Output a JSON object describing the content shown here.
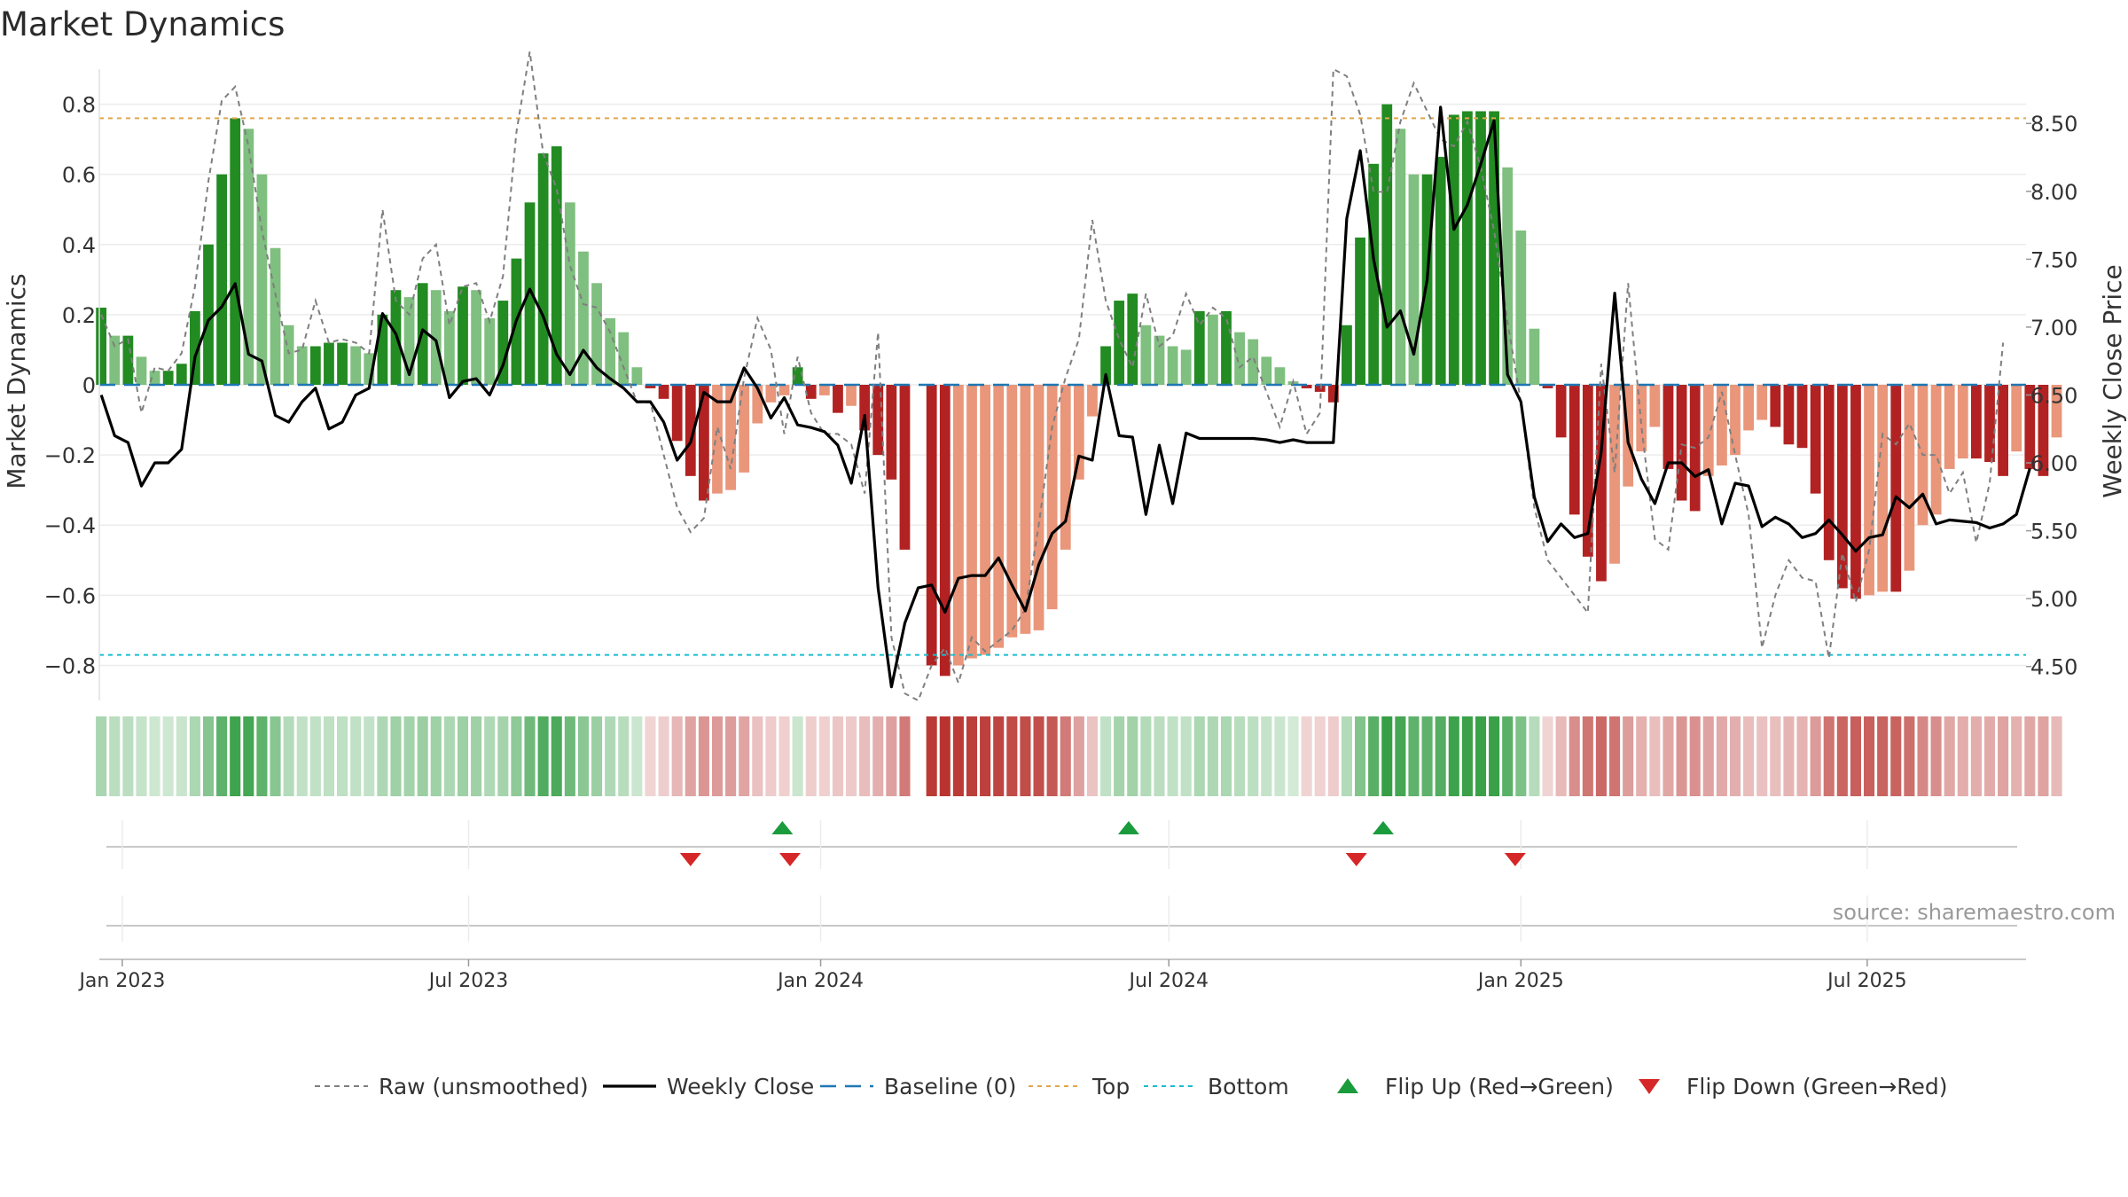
{
  "title": "Market Dynamics",
  "source": "source: sharemaestro.com",
  "chart_data": {
    "type": "bar",
    "title": "Market Dynamics",
    "y_label": "Market Dynamics",
    "y2_label": "Weekly Close Price",
    "ylim": [
      -0.9,
      0.9
    ],
    "y2lim": [
      4.25,
      8.9
    ],
    "y_ticks": [
      0.8,
      0.6,
      0.4,
      0.2,
      0,
      -0.2,
      -0.4,
      -0.6,
      -0.8
    ],
    "y_tick_labels": [
      "0.8",
      "0.6",
      "0.4",
      "0.2",
      "0",
      "−0.2",
      "−0.4",
      "−0.6",
      "−0.8"
    ],
    "y2_ticks": [
      8.5,
      8.0,
      7.5,
      7.0,
      6.5,
      6.0,
      5.5,
      5.0,
      4.5
    ],
    "y2_tick_labels": [
      "8.50",
      "8.00",
      "7.50",
      "7.00",
      "6.50",
      "6.00",
      "5.50",
      "5.00",
      "4.50"
    ],
    "x_range": [
      "2022-12-20",
      "2025-09-22"
    ],
    "x_ticks": [
      "2023-01-01",
      "2023-07-01",
      "2024-01-01",
      "2024-07-01",
      "2025-01-01",
      "2025-07-01"
    ],
    "x_tick_labels": [
      "Jan 2023",
      "Jul 2023",
      "Jan 2024",
      "Jul 2024",
      "Jan 2025",
      "Jul 2025"
    ],
    "top_line": 0.76,
    "bottom_line": -0.77,
    "baseline": 0,
    "grid": true,
    "legend_position": "bottom",
    "weeks_start": "2022-12-21",
    "weekly_step_days": 7,
    "dynamics": [
      0.22,
      0.14,
      0.14,
      0.08,
      0.04,
      0.04,
      0.06,
      0.21,
      0.4,
      0.6,
      0.76,
      0.73,
      0.6,
      0.39,
      0.17,
      0.11,
      0.11,
      0.12,
      0.12,
      0.11,
      0.09,
      0.2,
      0.27,
      0.25,
      0.29,
      0.27,
      0.21,
      0.28,
      0.27,
      0.19,
      0.24,
      0.36,
      0.52,
      0.66,
      0.68,
      0.52,
      0.38,
      0.29,
      0.19,
      0.15,
      0.05,
      -0.01,
      -0.04,
      -0.16,
      -0.26,
      -0.33,
      -0.31,
      -0.3,
      -0.25,
      -0.11,
      -0.05,
      -0.03,
      0.05,
      -0.04,
      -0.03,
      -0.08,
      -0.06,
      -0.13,
      -0.2,
      -0.27,
      -0.47,
      0,
      -0.8,
      -0.83,
      -0.8,
      -0.78,
      -0.77,
      -0.75,
      -0.72,
      -0.71,
      -0.7,
      -0.64,
      -0.47,
      -0.27,
      -0.09,
      0.11,
      0.24,
      0.26,
      0.17,
      0.14,
      0.11,
      0.1,
      0.21,
      0.2,
      0.21,
      0.15,
      0.13,
      0.08,
      0.05,
      0.01,
      -0.01,
      -0.02,
      -0.05,
      0.17,
      0.42,
      0.63,
      0.8,
      0.73,
      0.6,
      0.6,
      0.65,
      0.77,
      0.78,
      0.78,
      0.78,
      0.62,
      0.44,
      0.16,
      -0.01,
      -0.15,
      -0.37,
      -0.49,
      -0.56,
      -0.51,
      -0.29,
      -0.19,
      -0.12,
      -0.24,
      -0.33,
      -0.36,
      -0.26,
      -0.23,
      -0.2,
      -0.13,
      -0.1,
      -0.12,
      -0.17,
      -0.18,
      -0.31,
      -0.5,
      -0.58,
      -0.61,
      -0.6,
      -0.59,
      -0.59,
      -0.53,
      -0.4,
      -0.37,
      -0.24,
      -0.21,
      -0.21,
      -0.22,
      -0.26,
      -0.19,
      -0.24,
      -0.26,
      -0.15
    ],
    "raw": [
      0.2,
      0.11,
      0.13,
      -0.08,
      0.05,
      0.04,
      0.09,
      0.28,
      0.58,
      0.81,
      0.85,
      0.68,
      0.44,
      0.26,
      0.09,
      0.1,
      0.24,
      0.12,
      0.13,
      0.12,
      0.09,
      0.5,
      0.24,
      0.2,
      0.36,
      0.4,
      0.17,
      0.28,
      0.29,
      0.18,
      0.31,
      0.72,
      0.95,
      0.66,
      0.56,
      0.34,
      0.23,
      0.22,
      0.15,
      0.05,
      -0.05,
      -0.05,
      -0.2,
      -0.35,
      -0.42,
      -0.38,
      -0.12,
      -0.24,
      0.02,
      0.19,
      0.1,
      -0.14,
      0.08,
      -0.08,
      -0.14,
      -0.14,
      -0.17,
      -0.31,
      0.15,
      -0.72,
      -0.88,
      -0.9,
      -0.8,
      -0.75,
      -0.85,
      -0.72,
      -0.76,
      -0.73,
      -0.7,
      -0.64,
      -0.4,
      -0.12,
      0.02,
      0.13,
      0.47,
      0.24,
      0.13,
      0.05,
      0.26,
      0.11,
      0.14,
      0.26,
      0.17,
      0.22,
      0.19,
      0.05,
      0.08,
      -0.02,
      -0.12,
      0.01,
      -0.14,
      -0.08,
      0.9,
      0.88,
      0.77,
      0.55,
      0.55,
      0.75,
      0.86,
      0.78,
      0.7,
      0.68,
      0.75,
      0.62,
      0.44,
      0.18,
      -0.05,
      -0.35,
      -0.5,
      -0.55,
      -0.6,
      -0.65,
      0.06,
      -0.25,
      0.29,
      -0.12,
      -0.44,
      -0.47,
      -0.17,
      -0.18,
      -0.15,
      -0.02,
      -0.2,
      -0.37,
      -0.75,
      -0.6,
      -0.5,
      -0.55,
      -0.56,
      -0.78,
      -0.48,
      -0.62,
      -0.47,
      -0.14,
      -0.17,
      -0.11,
      -0.2,
      -0.2,
      -0.31,
      -0.25,
      -0.45,
      -0.28,
      0.12
    ],
    "close": [
      6.5,
      6.2,
      6.15,
      5.83,
      6.0,
      6.0,
      6.1,
      6.78,
      7.05,
      7.15,
      7.32,
      6.8,
      6.75,
      6.35,
      6.3,
      6.45,
      6.55,
      6.25,
      6.3,
      6.5,
      6.55,
      7.1,
      6.95,
      6.65,
      6.98,
      6.9,
      6.48,
      6.6,
      6.62,
      6.5,
      6.72,
      7.05,
      7.28,
      7.08,
      6.8,
      6.65,
      6.83,
      6.7,
      6.62,
      6.55,
      6.45,
      6.45,
      6.3,
      6.02,
      6.15,
      6.52,
      6.45,
      6.45,
      6.7,
      6.55,
      6.33,
      6.48,
      6.28,
      6.26,
      6.23,
      6.13,
      5.85,
      6.35,
      5.08,
      4.35,
      4.82,
      5.08,
      5.1,
      4.9,
      5.15,
      5.17,
      5.17,
      5.3,
      5.1,
      4.91,
      5.25,
      5.48,
      5.57,
      6.05,
      6.02,
      6.65,
      6.2,
      6.19,
      5.62,
      6.13,
      5.7,
      6.22,
      6.18,
      6.18,
      6.18,
      6.18,
      6.18,
      6.17,
      6.15,
      6.17,
      6.15,
      6.15,
      6.15,
      7.8,
      8.3,
      7.5,
      7.0,
      7.12,
      6.8,
      7.35,
      8.62,
      7.72,
      7.9,
      8.2,
      8.52,
      6.65,
      6.45,
      5.75,
      5.42,
      5.55,
      5.45,
      5.48,
      6.08,
      7.25,
      6.15,
      5.88,
      5.7,
      6.0,
      6.0,
      5.9,
      5.95,
      5.55,
      5.85,
      5.83,
      5.53,
      5.6,
      5.55,
      5.45,
      5.48,
      5.58,
      5.47,
      5.35,
      5.45,
      5.47,
      5.75,
      5.67,
      5.77,
      5.55,
      5.58,
      5.57,
      5.56,
      5.52,
      5.55,
      5.62,
      5.96
    ],
    "flips_up": [
      "2023-12-12",
      "2024-06-10",
      "2024-10-21"
    ],
    "flips_down": [
      "2023-10-25",
      "2023-12-16",
      "2024-10-07",
      "2024-12-29"
    ],
    "legend": [
      {
        "label": "Raw (unsmoothed)",
        "style": "dashed-gray"
      },
      {
        "label": "Weekly Close",
        "style": "solid-black"
      },
      {
        "label": "Baseline (0)",
        "style": "dashed-blue"
      },
      {
        "label": "Top",
        "style": "dotted-orange"
      },
      {
        "label": "Bottom",
        "style": "dotted-cyan"
      },
      {
        "label": "Flip Up (Red→Green)",
        "style": "triangle-up"
      },
      {
        "label": "Flip Down (Green→Red)",
        "style": "triangle-down"
      }
    ],
    "colors": {
      "pos_strong": "#228b22",
      "pos_weak": "#7fbf7f",
      "neg_strong": "#b22222",
      "neg_weak": "#e9967a",
      "raw": "#7f7f7f",
      "close": "#000000",
      "baseline": "#1f77b4",
      "top": "#dfa84d",
      "bottom": "#17becf",
      "flip_up": "#1a9b3c",
      "flip_down": "#d62728"
    }
  }
}
